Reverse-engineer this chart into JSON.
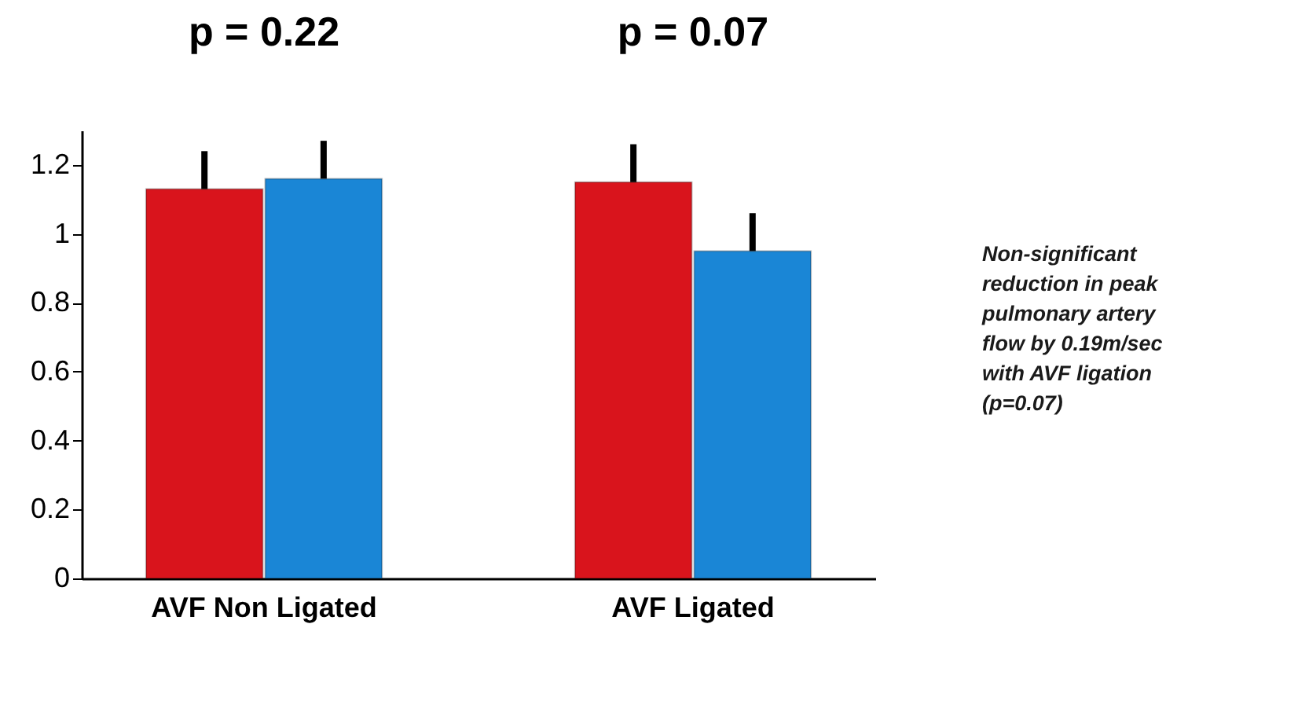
{
  "chart_data": {
    "type": "bar",
    "categories": [
      "AVF Non Ligated",
      "AVF Ligated"
    ],
    "series": [
      {
        "color": "#d9141c",
        "values": [
          1.13,
          1.15
        ],
        "errors": [
          [
            1.13,
            1.24
          ],
          [
            1.15,
            1.26
          ]
        ]
      },
      {
        "color": "#1a86d6",
        "values": [
          1.16,
          0.95
        ],
        "errors": [
          [
            1.16,
            1.27
          ],
          [
            0.95,
            1.06
          ]
        ]
      }
    ],
    "ylim": [
      0,
      1.3
    ],
    "yticks": [
      0,
      0.2,
      0.4,
      0.6,
      0.8,
      1,
      1.2
    ],
    "grid": false,
    "legend": false,
    "annotations": [
      "p = 0.22",
      "p = 0.07",
      "Non-significant\nreduction in peak\npulmonary artery\nflow by 0.19m/sec\nwith AVF ligation\n(p=0.07)"
    ]
  }
}
